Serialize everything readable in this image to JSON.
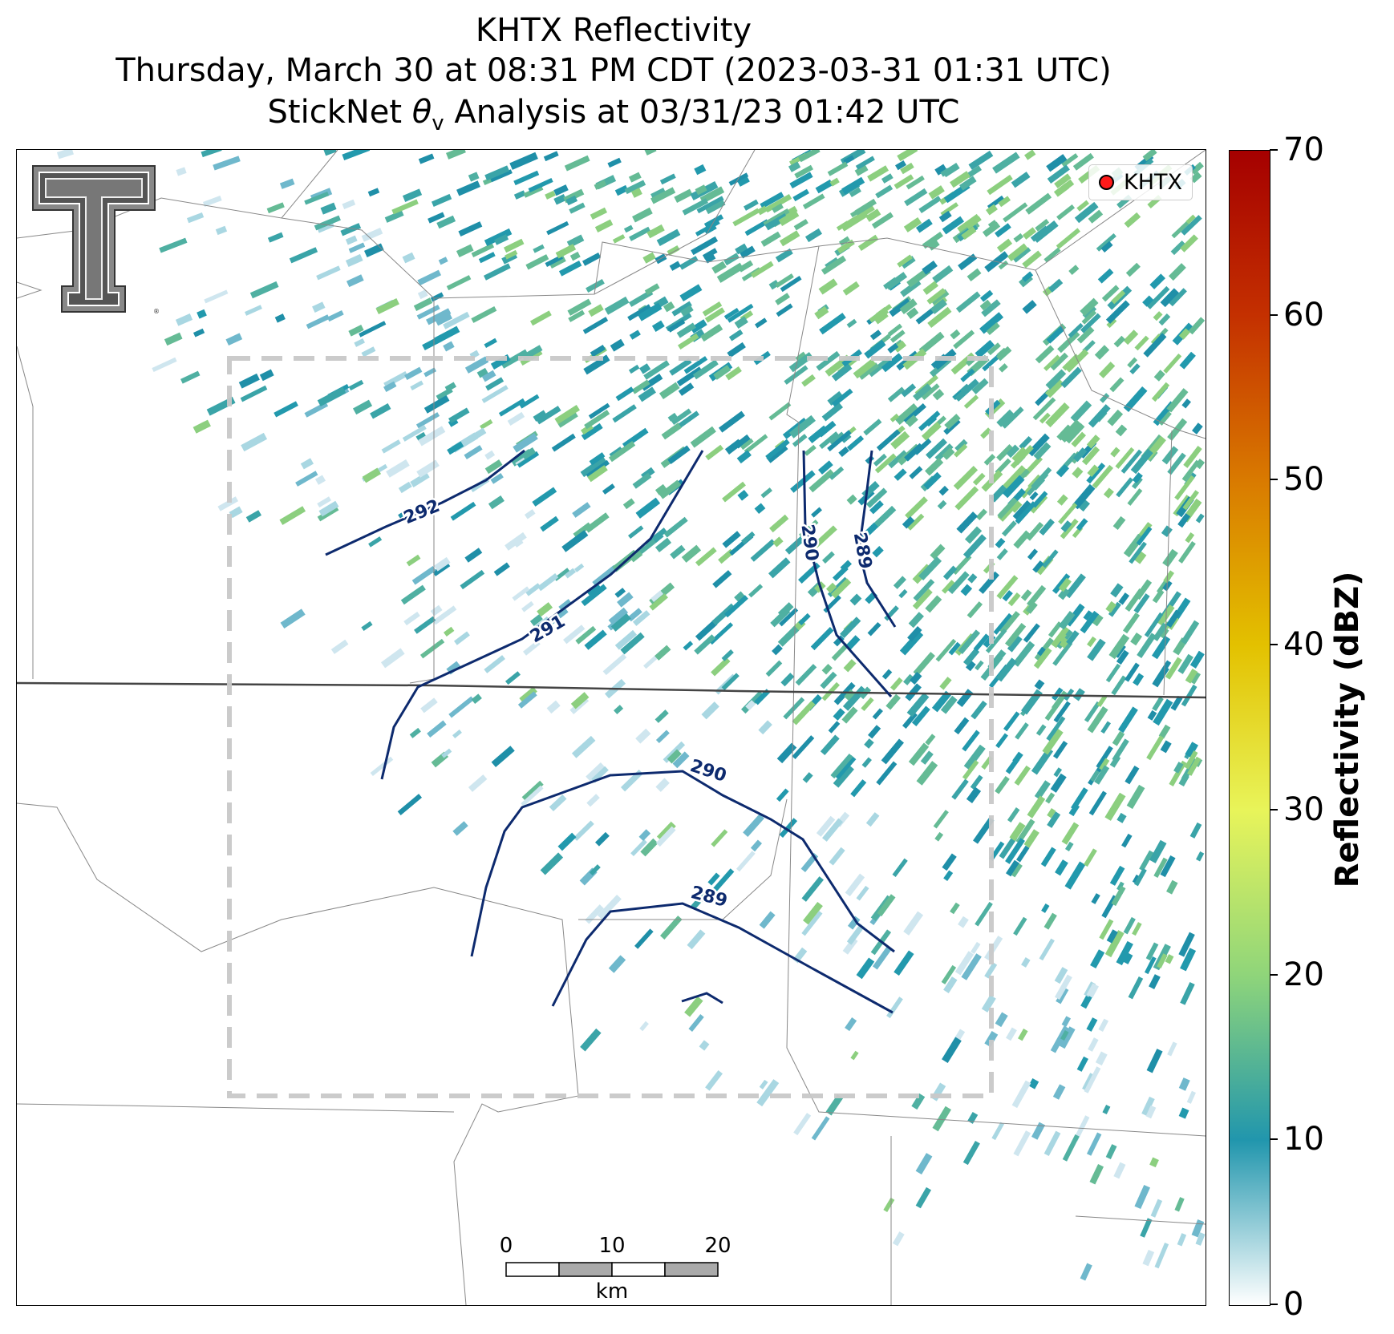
{
  "title": {
    "line1": "KHTX Reflectivity",
    "line2": "Thursday, March 30 at 08:31 PM CDT (2023-03-31 01:31 UTC)",
    "line3_prefix": "StickNet ",
    "line3_symbol": "θ",
    "line3_sub": "v",
    "line3_suffix": " Analysis at 03/31/23 01:42 UTC"
  },
  "legend": {
    "label": "KHTX",
    "marker_color": "#ff1a1a"
  },
  "colorbar": {
    "label": "Reflectivity (dBZ)",
    "ticks": [
      "0",
      "10",
      "20",
      "30",
      "40",
      "50",
      "60",
      "70"
    ],
    "range": [
      0,
      70
    ],
    "colors": [
      "#ffffff",
      "#2196ad",
      "#8fd57a",
      "#e8f45a",
      "#e3c100",
      "#d97a00",
      "#c43000",
      "#a50000"
    ]
  },
  "contours": [
    {
      "label": "292"
    },
    {
      "label": "291"
    },
    {
      "label": "290"
    },
    {
      "label": "289"
    },
    {
      "label": "290"
    },
    {
      "label": "289"
    }
  ],
  "scalebar": {
    "ticks": [
      "0",
      "10",
      "20"
    ],
    "unit": "km"
  },
  "colors": {
    "contour": "#0d2a6e",
    "box": "#c8c8c8",
    "boundary": "#777777"
  }
}
